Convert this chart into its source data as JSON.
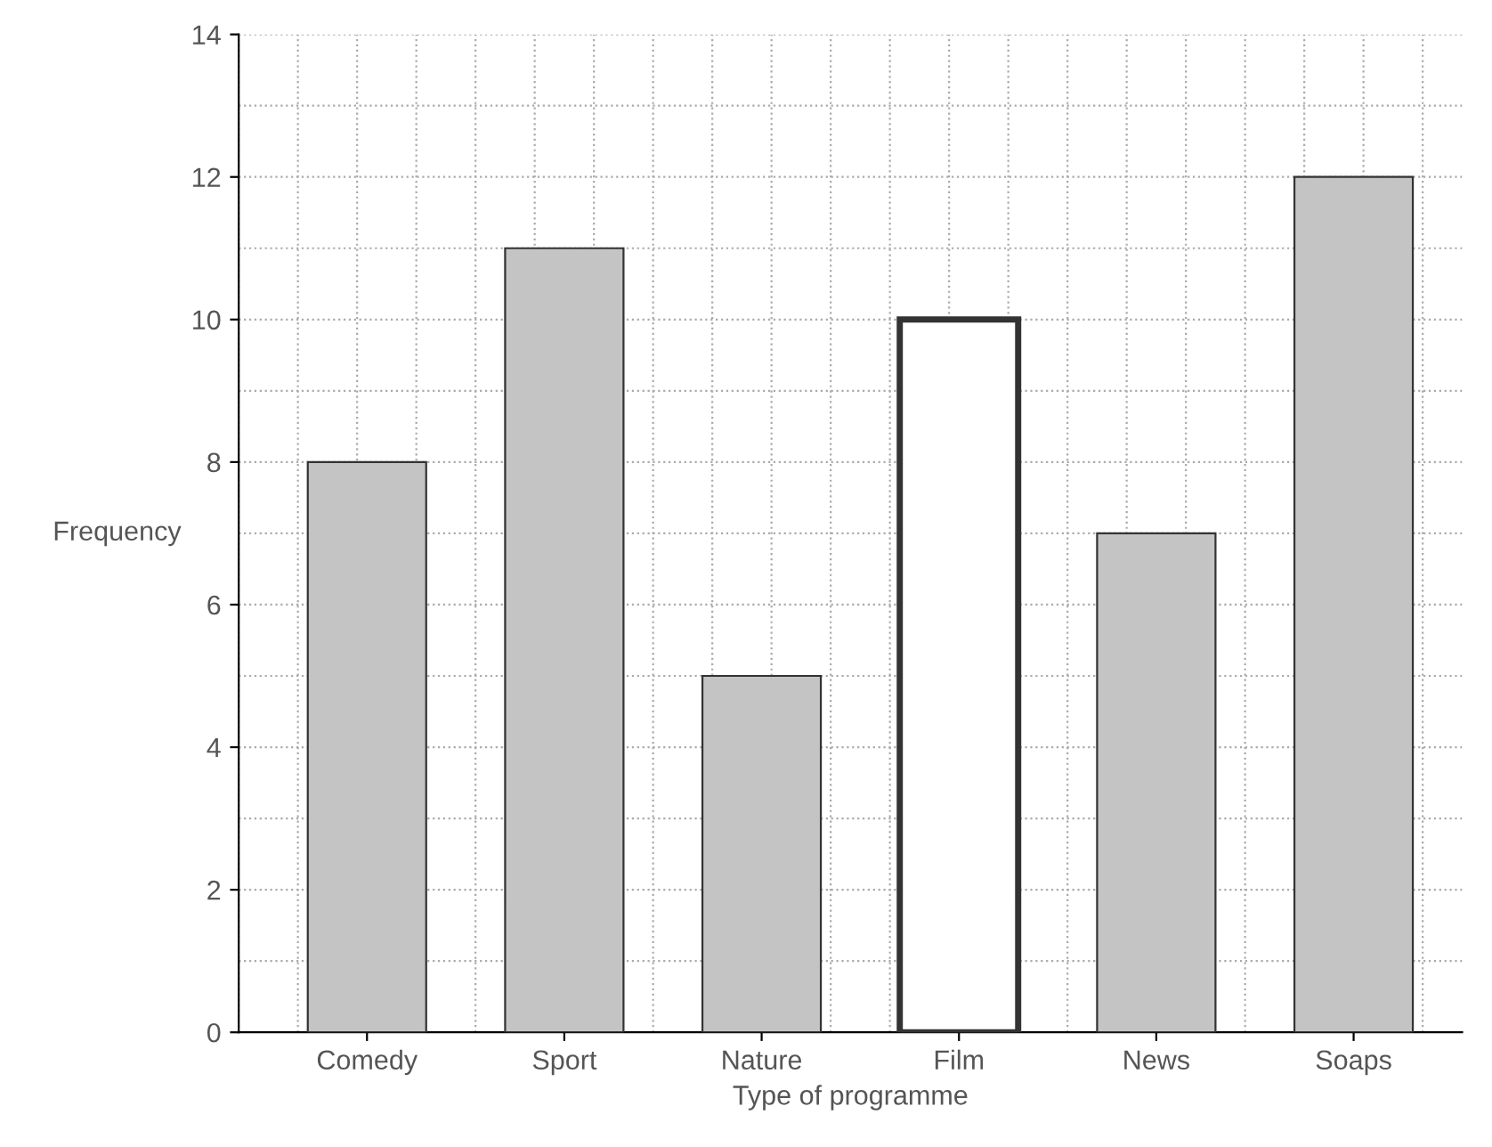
{
  "chart_data": {
    "type": "bar",
    "xlabel": "Type of programme",
    "ylabel": "Frequency",
    "categories": [
      "Comedy",
      "Sport",
      "Nature",
      "Film",
      "News",
      "Soaps"
    ],
    "values": [
      8,
      11,
      5,
      10,
      7,
      12
    ],
    "colors": [
      "#c4c4c4",
      "#c4c4c4",
      "#c4c4c4",
      "#ffffff",
      "#c4c4c4",
      "#c4c4c4"
    ],
    "ylim": [
      0,
      14
    ],
    "yticks": [
      0,
      2,
      4,
      6,
      8,
      10,
      12,
      14
    ],
    "grid": true
  }
}
